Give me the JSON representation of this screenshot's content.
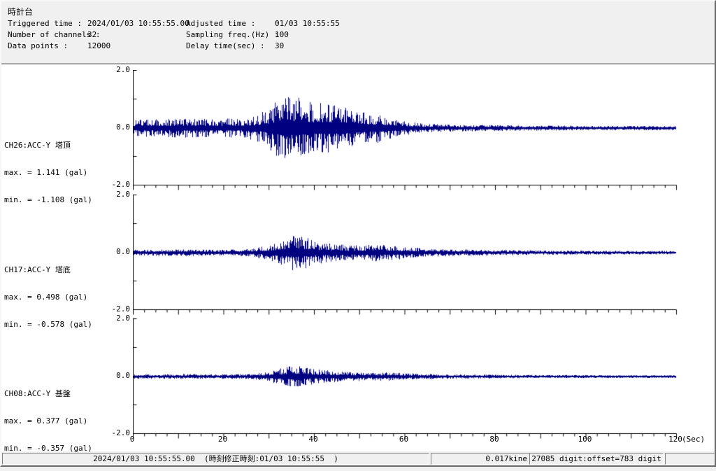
{
  "app": {
    "background_color": "#f0f0f0",
    "plot_background_color": "#ffffff",
    "waveform_color": "#000080",
    "zeroline_color": "#008000",
    "axis_color": "#000000"
  },
  "header": {
    "title": "時計台",
    "fields": [
      {
        "label": "Triggered time :",
        "value": "2024/01/03 10:55:55.00"
      },
      {
        "label": "Adjusted time :",
        "value": "01/03 10:55:55"
      },
      {
        "label": "Number of channels :",
        "value": "32"
      },
      {
        "label": "Sampling freq.(Hz) :",
        "value": "100"
      },
      {
        "label": "Data points :",
        "value": "12000"
      },
      {
        "label": "Delay time(sec) :",
        "value": "30"
      }
    ]
  },
  "axis": {
    "xlim": [
      0,
      120
    ],
    "ylim": [
      -2.0,
      2.0
    ],
    "xticks": [
      0,
      20,
      40,
      60,
      80,
      100,
      120
    ],
    "xtick_minor_step": 2.5,
    "xtick_medium_step": 10,
    "ytick_step": 1.0,
    "ytick_labels": [
      {
        "value": 2.0,
        "text": "2.0"
      },
      {
        "value": 0.0,
        "text": "0.0"
      },
      {
        "value": -2.0,
        "text": "-2.0"
      }
    ],
    "xlabel": "(Sec)"
  },
  "chart_data": [
    {
      "type": "line",
      "channel": "CH26:ACC-Y 塔頂",
      "max_label": "max. = 1.141 (gal)",
      "min_label": "min. = -1.108 (gal)",
      "max_gal": 1.141,
      "min_gal": -1.108,
      "unit": "gal",
      "seed": 1234,
      "envelope": [
        [
          0,
          0.26
        ],
        [
          5,
          0.3
        ],
        [
          12,
          0.32
        ],
        [
          20,
          0.3
        ],
        [
          25,
          0.33
        ],
        [
          28,
          0.46
        ],
        [
          31,
          0.82
        ],
        [
          33,
          1.12
        ],
        [
          35,
          1.02
        ],
        [
          37,
          0.95
        ],
        [
          40,
          0.82
        ],
        [
          43,
          0.86
        ],
        [
          46,
          0.7
        ],
        [
          49,
          0.6
        ],
        [
          52,
          0.5
        ],
        [
          55,
          0.45
        ],
        [
          58,
          0.3
        ],
        [
          61,
          0.2
        ],
        [
          64,
          0.15
        ],
        [
          68,
          0.12
        ],
        [
          75,
          0.1
        ],
        [
          85,
          0.08
        ],
        [
          95,
          0.07
        ],
        [
          105,
          0.06
        ],
        [
          120,
          0.06
        ]
      ]
    },
    {
      "type": "line",
      "channel": "CH17:ACC-Y 塔底",
      "max_label": "max. = 0.498 (gal)",
      "min_label": "min. = -0.578 (gal)",
      "max_gal": 0.498,
      "min_gal": -0.578,
      "unit": "gal",
      "seed": 5678,
      "envelope": [
        [
          0,
          0.09
        ],
        [
          10,
          0.1
        ],
        [
          20,
          0.09
        ],
        [
          26,
          0.12
        ],
        [
          30,
          0.25
        ],
        [
          33,
          0.45
        ],
        [
          35,
          0.56
        ],
        [
          38,
          0.5
        ],
        [
          41,
          0.35
        ],
        [
          44,
          0.3
        ],
        [
          47,
          0.25
        ],
        [
          50,
          0.22
        ],
        [
          53,
          0.28
        ],
        [
          56,
          0.25
        ],
        [
          60,
          0.18
        ],
        [
          65,
          0.12
        ],
        [
          70,
          0.1
        ],
        [
          80,
          0.08
        ],
        [
          90,
          0.06
        ],
        [
          100,
          0.05
        ],
        [
          110,
          0.05
        ],
        [
          120,
          0.05
        ]
      ]
    },
    {
      "type": "line",
      "channel": "CH08:ACC-Y 基盤",
      "max_label": "max. = 0.377 (gal)",
      "min_label": "min. = -0.357 (gal)",
      "max_gal": 0.377,
      "min_gal": -0.357,
      "unit": "gal",
      "seed": 9012,
      "envelope": [
        [
          0,
          0.06
        ],
        [
          10,
          0.07
        ],
        [
          20,
          0.06
        ],
        [
          26,
          0.08
        ],
        [
          30,
          0.15
        ],
        [
          33,
          0.3
        ],
        [
          35,
          0.37
        ],
        [
          38,
          0.3
        ],
        [
          41,
          0.22
        ],
        [
          44,
          0.18
        ],
        [
          48,
          0.14
        ],
        [
          52,
          0.12
        ],
        [
          56,
          0.14
        ],
        [
          60,
          0.1
        ],
        [
          65,
          0.08
        ],
        [
          70,
          0.06
        ],
        [
          80,
          0.05
        ],
        [
          90,
          0.04
        ],
        [
          100,
          0.04
        ],
        [
          110,
          0.035
        ],
        [
          120,
          0.035
        ]
      ]
    }
  ],
  "statusbar": {
    "datetime_text": "2024/01/03 10:55:55.00  (時刻修正時刻:01/03 10:55:55  )",
    "kine_text": "0.017kine",
    "digit_text": "27085 digit:offset=783 digit"
  }
}
